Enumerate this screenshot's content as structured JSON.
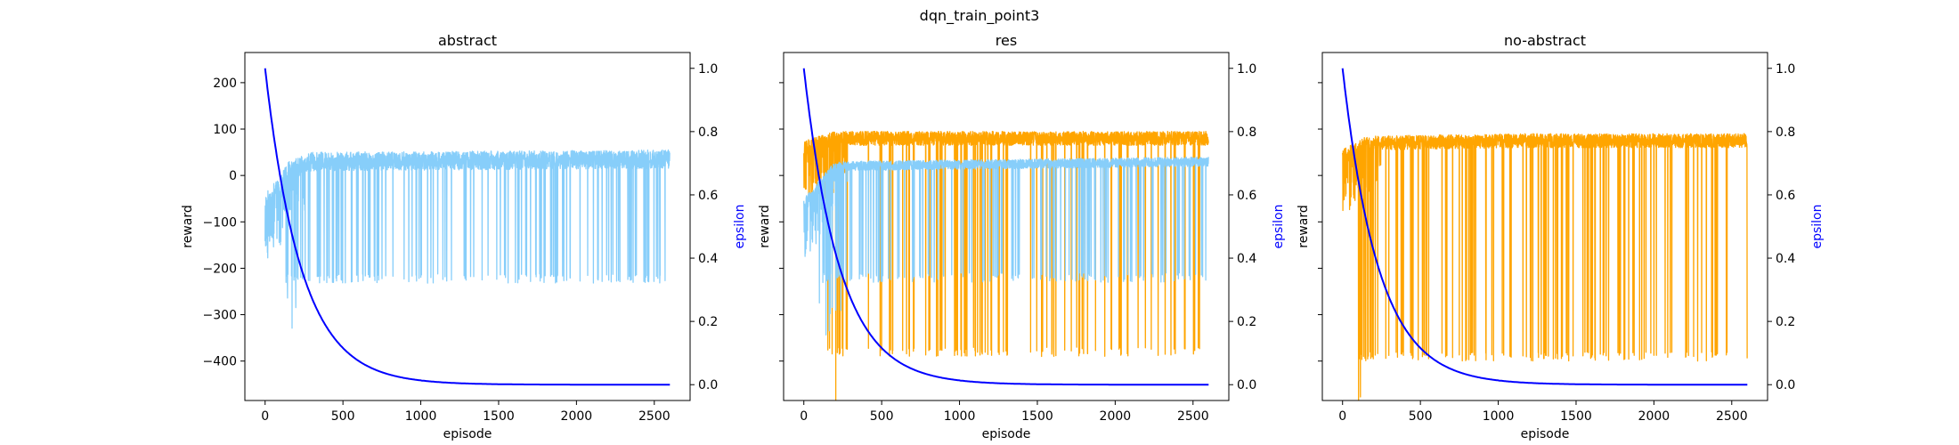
{
  "figure": {
    "title": "dqn_train_point3"
  },
  "colors": {
    "abstract": "#87CEFA",
    "noabstract": "#FFA500",
    "epsilon": "#0000FF",
    "axis": "#000000"
  },
  "chart_data": [
    {
      "type": "line",
      "title": "abstract",
      "xlabel": "episode",
      "ylabel": "reward",
      "y2label": "epsilon",
      "xlim": [
        -130,
        2730
      ],
      "ylim": [
        -485,
        265
      ],
      "y2lim": [
        -0.05,
        1.05
      ],
      "xticks": [
        0,
        500,
        1000,
        1500,
        2000,
        2500
      ],
      "yticks": [
        -400,
        -300,
        -200,
        -100,
        0,
        100,
        200
      ],
      "y2ticks": [
        0.0,
        0.2,
        0.4,
        0.6,
        0.8,
        1.0
      ],
      "y2ticklabels": [
        "0.0",
        "0.2",
        "0.4",
        "0.6",
        "0.8",
        "1.0"
      ],
      "grid": false,
      "series": [
        {
          "color": "abstract",
          "axis": "left",
          "episodes": 2600,
          "base": [
            [
              0,
              -60
            ],
            [
              100,
              -20
            ],
            [
              150,
              10
            ],
            [
              300,
              30
            ],
            [
              2600,
              35
            ]
          ],
          "dip_to": -222,
          "dip_from": 130,
          "dip_until": 2600,
          "noise": 40
        },
        {
          "color": "epsilon",
          "axis": "right",
          "epsilon_start": 1.0,
          "epsilon_decay": 0.9957,
          "episodes": 2600
        }
      ]
    },
    {
      "type": "line",
      "title": "res",
      "xlabel": "episode",
      "ylabel": "reward",
      "y2label": "epsilon",
      "xlim": [
        -130,
        2730
      ],
      "ylim": [
        -485,
        265
      ],
      "y2lim": [
        -0.05,
        1.05
      ],
      "xticks": [
        0,
        500,
        1000,
        1500,
        2000,
        2500
      ],
      "yticks": [
        -400,
        -300,
        -200,
        -100,
        0,
        100,
        200
      ],
      "y2ticks": [
        0.0,
        0.2,
        0.4,
        0.6,
        0.8,
        1.0
      ],
      "y2ticklabels": [
        "0.0",
        "0.2",
        "0.4",
        "0.6",
        "0.8",
        "1.0"
      ],
      "grid": false,
      "series": [
        {
          "color": "noabstract",
          "axis": "left",
          "episodes": 2600,
          "base": [
            [
              0,
              60
            ],
            [
              200,
              80
            ],
            [
              2600,
              80
            ]
          ],
          "dip_to": -380,
          "dip_from": 150,
          "dip_until": 2600,
          "noise": 30
        },
        {
          "color": "abstract",
          "axis": "left",
          "episodes": 2600,
          "base": [
            [
              0,
              -60
            ],
            [
              200,
              20
            ],
            [
              2600,
              30
            ]
          ],
          "dip_to": -220,
          "dip_from": 100,
          "dip_until": 2600,
          "noise": 20
        },
        {
          "color": "epsilon",
          "axis": "right",
          "epsilon_start": 1.0,
          "epsilon_decay": 0.9957,
          "episodes": 2600
        }
      ]
    },
    {
      "type": "line",
      "title": "no-abstract",
      "xlabel": "episode",
      "ylabel": "reward",
      "y2label": "epsilon",
      "xlim": [
        -130,
        2730
      ],
      "ylim": [
        -485,
        265
      ],
      "y2lim": [
        -0.05,
        1.05
      ],
      "xticks": [
        0,
        500,
        1000,
        1500,
        2000,
        2500
      ],
      "yticks": [
        -400,
        -300,
        -200,
        -100,
        0,
        100,
        200
      ],
      "y2ticks": [
        0.0,
        0.2,
        0.4,
        0.6,
        0.8,
        1.0
      ],
      "y2ticklabels": [
        "0.0",
        "0.2",
        "0.4",
        "0.6",
        "0.8",
        "1.0"
      ],
      "grid": false,
      "series": [
        {
          "color": "noabstract",
          "axis": "left",
          "episodes": 2600,
          "base": [
            [
              0,
              40
            ],
            [
              150,
              70
            ],
            [
              1200,
              75
            ],
            [
              2600,
              75
            ]
          ],
          "dip_to": -390,
          "dip_from": 100,
          "dip_until": 2600,
          "noise": 30
        },
        {
          "color": "epsilon",
          "axis": "right",
          "epsilon_start": 1.0,
          "epsilon_decay": 0.9957,
          "episodes": 2600
        }
      ]
    }
  ]
}
